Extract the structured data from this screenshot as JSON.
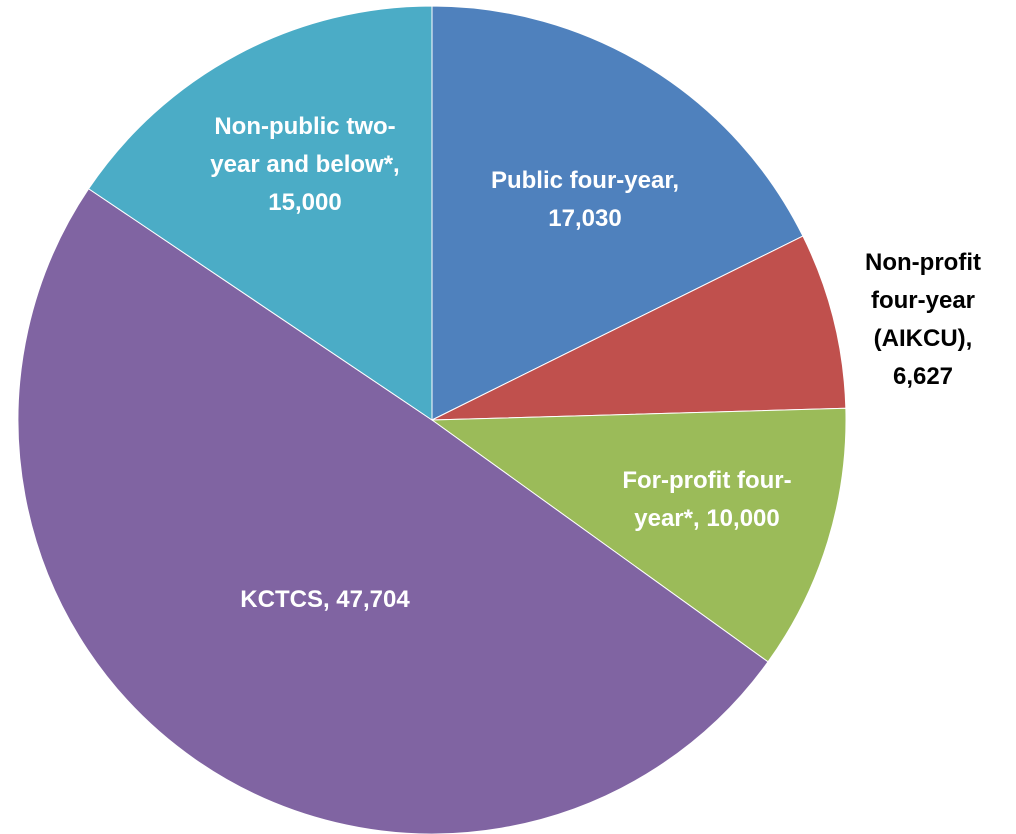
{
  "chart_data": {
    "type": "pie",
    "categories": [
      "Public four-year",
      "Non-profit four-year (AIKCU)",
      "For-profit four-year*",
      "KCTCS",
      "Non-public two-year and below*"
    ],
    "values": [
      17030,
      6627,
      10000,
      47704,
      15000
    ],
    "value_labels": [
      "17,030",
      "6,627",
      "10,000",
      "47,704",
      "15,000"
    ],
    "label_separator": ", ",
    "colors": [
      "#4F81BD",
      "#C0504D",
      "#9BBB59",
      "#8064A2",
      "#4BACC6"
    ]
  }
}
